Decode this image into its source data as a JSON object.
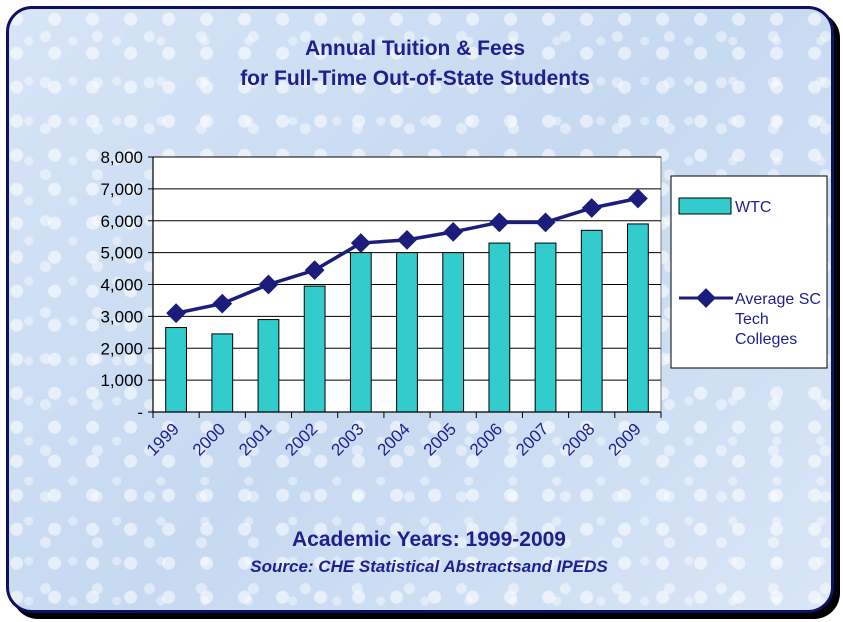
{
  "chart_data": {
    "type": "bar",
    "title": [
      "Annual Tuition & Fees",
      "for Full-Time Out-of-State Students"
    ],
    "xlabel": "Academic Years: 1999-2009",
    "source": "Source: CHE Statistical Abstractsand IPEDS",
    "categories": [
      "1999",
      "2000",
      "2001",
      "2002",
      "2003",
      "2004",
      "2005",
      "2006",
      "2007",
      "2008",
      "2009"
    ],
    "ylim": [
      0,
      8000
    ],
    "yticks": [
      0,
      1000,
      2000,
      3000,
      4000,
      5000,
      6000,
      7000,
      8000
    ],
    "ytick_labels": [
      "-",
      "1,000",
      "2,000",
      "3,000",
      "4,000",
      "5,000",
      "6,000",
      "7,000",
      "8,000"
    ],
    "legend_position": "right",
    "series": [
      {
        "name": "WTC",
        "type": "bar",
        "color": "#33cccc",
        "values": [
          2650,
          2450,
          2900,
          3950,
          5000,
          5000,
          5000,
          5300,
          5300,
          5700,
          5900
        ]
      },
      {
        "name": [
          "Average SC",
          "Tech",
          "Colleges"
        ],
        "type": "line",
        "color": "#1c1c7c",
        "values": [
          3100,
          3400,
          4000,
          4450,
          5300,
          5400,
          5650,
          5950,
          5950,
          6400,
          6700
        ]
      }
    ]
  }
}
